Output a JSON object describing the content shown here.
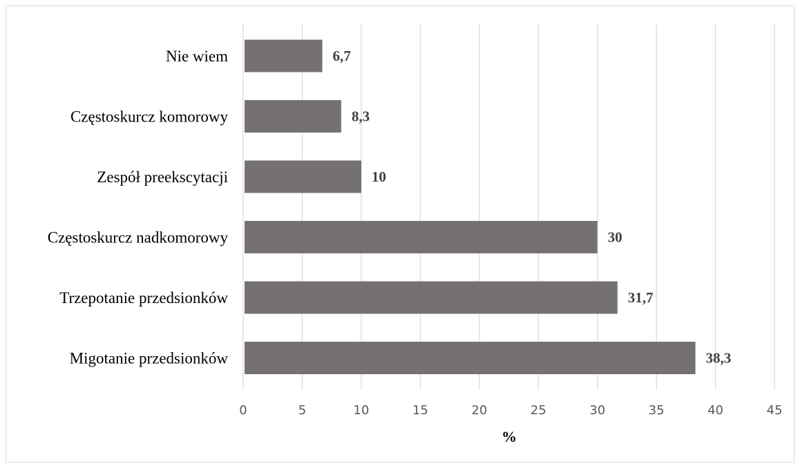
{
  "chart_data": {
    "type": "bar",
    "orientation": "horizontal",
    "title": "",
    "xlabel": "%",
    "ylabel": "",
    "categories": [
      "Nie wiem",
      "Częstoskurcz komorowy",
      "Zespół preekscytacji",
      "Częstoskurcz nadkomorowy",
      "Trzepotanie przedsionków",
      "Migotanie przedsionków"
    ],
    "values": [
      6.7,
      8.3,
      10,
      30,
      31.7,
      38.3
    ],
    "value_labels": [
      "6,7",
      "8,3",
      "10",
      "30",
      "31,7",
      "38,3"
    ],
    "xlim": [
      0,
      45
    ],
    "xticks": [
      "0",
      "5",
      "10",
      "15",
      "20",
      "25",
      "30",
      "35",
      "40",
      "45"
    ],
    "grid": "vertical",
    "legend": "none",
    "colors": {
      "bar": "#767171",
      "grid": "#d9d9d9",
      "tick_text": "#595959",
      "value_text": "#404040"
    }
  }
}
